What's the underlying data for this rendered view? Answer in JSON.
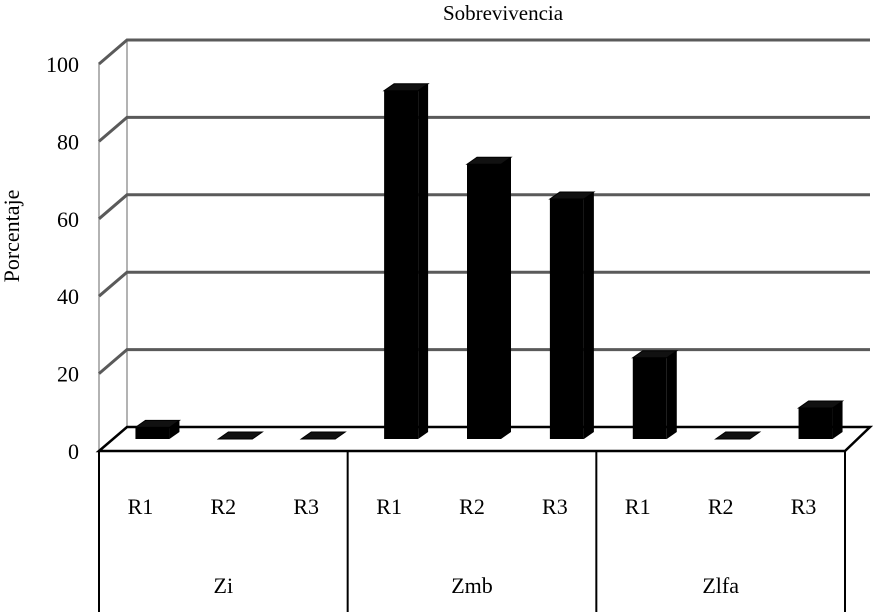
{
  "chart_data": {
    "type": "bar",
    "title": "Sobrevivencia",
    "ylabel": "Porcentaje",
    "xlabel": "",
    "ylim": [
      0,
      100
    ],
    "yticks": [
      0,
      20,
      40,
      60,
      80,
      100
    ],
    "grid": true,
    "three_d": true,
    "bar_color": "#000000",
    "groups": [
      {
        "label": "Zi",
        "categories": [
          "R1",
          "R2",
          "R3"
        ],
        "values": [
          3,
          0,
          0
        ]
      },
      {
        "label": "Zmb",
        "categories": [
          "R1",
          "R2",
          "R3"
        ],
        "values": [
          90,
          71,
          62
        ]
      },
      {
        "label": "Zlfa",
        "categories": [
          "R1",
          "R2",
          "R3"
        ],
        "values": [
          21,
          0,
          8
        ]
      }
    ]
  }
}
